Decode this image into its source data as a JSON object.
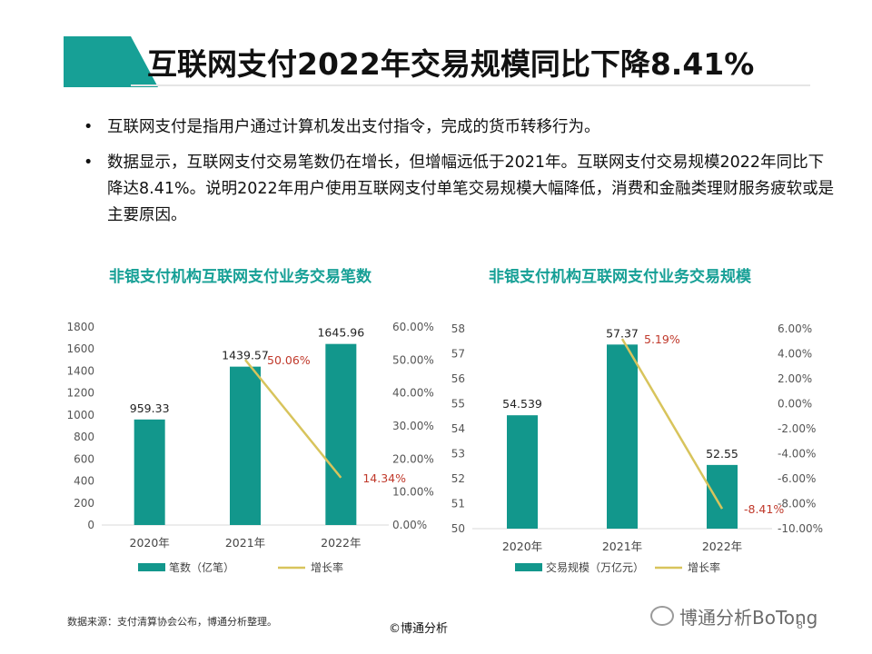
{
  "header": {
    "title": "互联网支付2022年交易规模同比下降8.41%"
  },
  "bullets": [
    "互联网支付是指用户通过计算机发出支付指令，完成的货币转移行为。",
    "数据显示，互联网支付交易笔数仍在增长，但增幅远低于2021年。互联网支付交易规模2022年同比下降达8.41%。说明2022年用户使用互联网支付单笔交易规模大幅降低，消费和金融类理财服务疲软或是主要原因。"
  ],
  "footer": {
    "source": "数据来源：支付清算协会公布，博通分析整理。",
    "copyright": "©博通分析",
    "brand": "博通分析BoTong",
    "page": "8"
  },
  "colors": {
    "teal": "#17a096",
    "bar": "#12978c",
    "line": "#d8c45c",
    "label_red": "#c0392b"
  },
  "chart_data": [
    {
      "type": "bar",
      "title": "非银支付机构互联网支付业务交易笔数",
      "categories": [
        "2020年",
        "2021年",
        "2022年"
      ],
      "series": [
        {
          "name": "笔数（亿笔）",
          "type": "bar",
          "axis": "left",
          "values": [
            959.33,
            1439.57,
            1645.96
          ],
          "labels": [
            "959.33",
            "1439.57",
            "1645.96"
          ]
        },
        {
          "name": "增长率",
          "type": "line",
          "axis": "right",
          "values": [
            null,
            50.06,
            14.34
          ],
          "labels": [
            "",
            "50.06%",
            "14.34%"
          ]
        }
      ],
      "y_left": {
        "min": 0,
        "max": 1800,
        "step": 200,
        "ticks": [
          "0",
          "200",
          "400",
          "600",
          "800",
          "1000",
          "1200",
          "1400",
          "1600",
          "1800"
        ]
      },
      "y_right": {
        "min": 0,
        "max": 60,
        "step": 10,
        "ticks": [
          "0.00%",
          "10.00%",
          "20.00%",
          "30.00%",
          "40.00%",
          "50.00%",
          "60.00%"
        ]
      },
      "legend": "bottom",
      "grid": false
    },
    {
      "type": "bar",
      "title": "非银支付机构互联网支付业务交易规模",
      "categories": [
        "2020年",
        "2021年",
        "2022年"
      ],
      "series": [
        {
          "name": "交易规模（万亿元）",
          "type": "bar",
          "axis": "left",
          "values": [
            54.539,
            57.37,
            52.55
          ],
          "labels": [
            "54.539",
            "57.37",
            "52.55"
          ]
        },
        {
          "name": "增长率",
          "type": "line",
          "axis": "right",
          "values": [
            null,
            5.19,
            -8.41
          ],
          "labels": [
            "",
            "5.19%",
            "-8.41%"
          ]
        }
      ],
      "y_left": {
        "min": 50,
        "max": 58,
        "step": 1,
        "ticks": [
          "50",
          "51",
          "52",
          "53",
          "54",
          "55",
          "56",
          "57",
          "58"
        ]
      },
      "y_right": {
        "min": -10,
        "max": 6,
        "step": 2,
        "ticks": [
          "-10.00%",
          "-8.00%",
          "-6.00%",
          "-4.00%",
          "-2.00%",
          "0.00%",
          "2.00%",
          "4.00%",
          "6.00%"
        ]
      },
      "legend": "bottom",
      "grid": false
    }
  ]
}
